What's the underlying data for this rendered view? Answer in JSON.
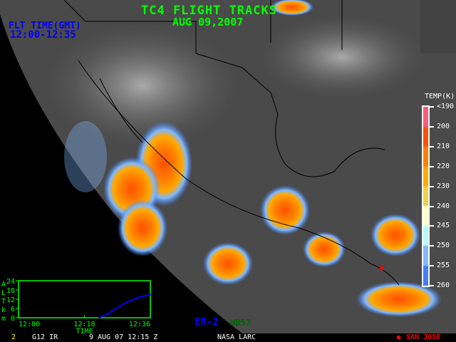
{
  "header": {
    "title": "TC4 FLIGHT TRACKS",
    "date": "AUG 09,2007",
    "flight_time_label": "FLT TIME(GMT)",
    "flight_time_range": "12:00-12:35"
  },
  "legend": {
    "title": "TEMP(K)",
    "labels": [
      "<190",
      "200",
      "210",
      "220",
      "230",
      "240",
      "245",
      "250",
      "255",
      "260"
    ],
    "colors": [
      "#ff5a78",
      "#ff5000",
      "#ff7f00",
      "#ffaa00",
      "#f0d24a",
      "#ffffc0",
      "#b0ffff",
      "#80b8ff",
      "#4080ff"
    ]
  },
  "aircraft": [
    {
      "name": "ER-2",
      "color": "#0000ff"
    },
    {
      "name": "WB57",
      "color": "#006400"
    }
  ],
  "altitude_plot": {
    "ylabel_letters": [
      "A",
      "L",
      "T",
      "k",
      "m"
    ],
    "yticks": [
      "24",
      "18",
      "12",
      "6",
      "0"
    ],
    "xticks": [
      "12:00",
      "12:18",
      "12:36"
    ],
    "xlabel": "TIME",
    "color": "#0000ff",
    "chart_data": {
      "type": "line",
      "x": [
        "12:22",
        "12:24",
        "12:26",
        "12:28",
        "12:30",
        "12:32",
        "12:34",
        "12:36"
      ],
      "y": [
        0,
        2,
        5,
        8,
        10.5,
        12.5,
        14,
        15
      ],
      "xlim": [
        "12:00",
        "12:36"
      ],
      "ylim": [
        0,
        24
      ]
    }
  },
  "status_bar": {
    "frame": "2",
    "satellite": "G12 IR",
    "datetime": "9 AUG 07 12:15 Z",
    "credit": "NASA LARC",
    "marker_label": "SAN JOSE",
    "marker_color": "#ff0000"
  }
}
